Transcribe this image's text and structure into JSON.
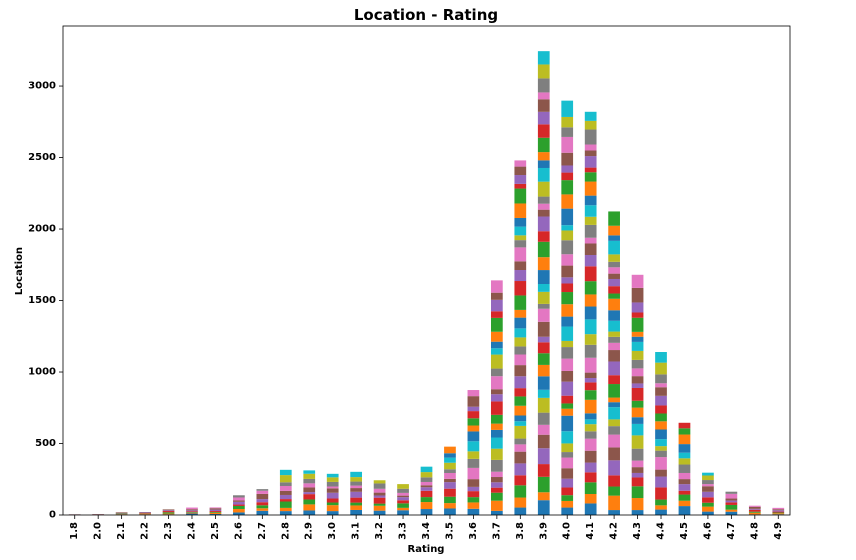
{
  "chart_data": {
    "type": "bar",
    "stacked": true,
    "title": "Location - Rating",
    "xlabel": "Rating",
    "ylabel": "Location",
    "categories": [
      "1.8",
      "2.0",
      "2.1",
      "2.2",
      "2.3",
      "2.4",
      "2.5",
      "2.6",
      "2.7",
      "2.8",
      "2.9",
      "3.0",
      "3.1",
      "3.2",
      "3.3",
      "3.4",
      "3.5",
      "3.6",
      "3.7",
      "3.8",
      "3.9",
      "4.0",
      "4.1",
      "4.2",
      "4.3",
      "4.4",
      "4.5",
      "4.6",
      "4.7",
      "4.8",
      "4.9"
    ],
    "totals": [
      5,
      7,
      19,
      21,
      39,
      52,
      53,
      138,
      181,
      316,
      312,
      288,
      302,
      243,
      216,
      338,
      478,
      874,
      1641,
      2480,
      3244,
      2898,
      2820,
      2123,
      1680,
      1140,
      645,
      296,
      163,
      65,
      50
    ],
    "ylim": [
      0,
      3420
    ],
    "yticks": [
      0,
      500,
      1000,
      1500,
      2000,
      2500,
      3000
    ],
    "grid": false,
    "legend": "none",
    "colors": [
      "#1f77b4",
      "#ff7f0e",
      "#2ca02c",
      "#d62728",
      "#9467bd",
      "#8c564b",
      "#e377c2",
      "#7f7f7f",
      "#bcbd22",
      "#17becf"
    ]
  }
}
